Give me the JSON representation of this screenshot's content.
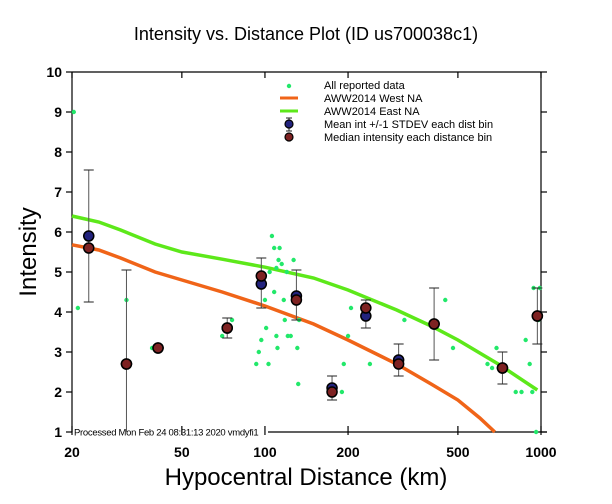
{
  "chart_data": {
    "type": "scatter",
    "title": "Intensity vs. Distance Plot (ID us700038c1)",
    "xlabel": "Hypocentral Distance (km)",
    "ylabel": "Intensity",
    "xscale": "log",
    "xlim": [
      20,
      1000
    ],
    "ylim": [
      1,
      10
    ],
    "xticks": [
      20,
      50,
      100,
      200,
      500,
      1000
    ],
    "xtick_labels": [
      "20",
      "50",
      "100",
      "200",
      "500",
      "1000"
    ],
    "yticks": [
      1,
      2,
      3,
      4,
      5,
      6,
      7,
      8,
      9,
      10
    ],
    "ytick_labels": [
      "1",
      "2",
      "3",
      "4",
      "5",
      "6",
      "7",
      "8",
      "9",
      "10"
    ],
    "grid": false,
    "legend_position": "top-right",
    "footer_text": "Processed Mon Feb 24 08:31:13 2020 vmdyfi1",
    "colors": {
      "reported": "#22e86a",
      "west": "#f06418",
      "east": "#5de81a",
      "mean": "#23237e",
      "median": "#7e2222",
      "errorbar": "#555555"
    },
    "legend": [
      {
        "label": "All reported data",
        "kind": "dot"
      },
      {
        "label": "AWW2014 West NA",
        "kind": "line-west"
      },
      {
        "label": "AWW2014 East NA",
        "kind": "line-east"
      },
      {
        "label": "Mean int +/-1 STDEV each dist bin",
        "kind": "mean"
      },
      {
        "label": "Median intensity each distance bin",
        "kind": "median"
      }
    ],
    "series": [
      {
        "name": "All reported data",
        "points": [
          [
            20.3,
            9.0
          ],
          [
            21,
            4.1
          ],
          [
            31.5,
            4.3
          ],
          [
            39,
            3.1
          ],
          [
            70,
            3.4
          ],
          [
            76,
            3.8
          ],
          [
            93,
            2.7
          ],
          [
            95,
            3.0
          ],
          [
            97,
            3.3
          ],
          [
            100,
            4.3
          ],
          [
            101,
            3.6
          ],
          [
            103,
            2.7
          ],
          [
            104,
            5.0
          ],
          [
            106,
            5.9
          ],
          [
            108,
            5.6
          ],
          [
            108,
            4.5
          ],
          [
            110,
            5.1
          ],
          [
            110,
            3.4
          ],
          [
            111,
            3.1
          ],
          [
            112,
            5.3
          ],
          [
            113,
            5.6
          ],
          [
            115,
            5.2
          ],
          [
            117,
            4.3
          ],
          [
            118,
            3.8
          ],
          [
            120,
            5.0
          ],
          [
            121,
            3.4
          ],
          [
            124,
            3.4
          ],
          [
            127,
            5.3
          ],
          [
            131,
            3.1
          ],
          [
            132,
            2.2
          ],
          [
            133,
            3.8
          ],
          [
            190,
            2.0
          ],
          [
            193,
            2.7
          ],
          [
            200,
            3.4
          ],
          [
            205,
            4.1
          ],
          [
            240,
            2.7
          ],
          [
            320,
            3.8
          ],
          [
            450,
            4.3
          ],
          [
            480,
            3.1
          ],
          [
            640,
            2.7
          ],
          [
            665,
            2.6
          ],
          [
            690,
            3.1
          ],
          [
            810,
            2.0
          ],
          [
            850,
            2.0
          ],
          [
            880,
            3.3
          ],
          [
            910,
            2.7
          ],
          [
            930,
            2.0
          ],
          [
            940,
            4.6
          ],
          [
            960,
            1.0
          ],
          [
            990,
            4.6
          ],
          [
            980,
            3.8
          ]
        ]
      },
      {
        "name": "AWW2014 West NA",
        "points": [
          [
            20,
            5.68
          ],
          [
            25,
            5.55
          ],
          [
            30,
            5.35
          ],
          [
            40,
            5.0
          ],
          [
            50,
            4.8
          ],
          [
            70,
            4.5
          ],
          [
            100,
            4.15
          ],
          [
            150,
            3.7
          ],
          [
            200,
            3.3
          ],
          [
            300,
            2.7
          ],
          [
            400,
            2.2
          ],
          [
            500,
            1.8
          ],
          [
            600,
            1.35
          ],
          [
            680,
            1.0
          ]
        ]
      },
      {
        "name": "AWW2014 East NA",
        "points": [
          [
            20,
            6.4
          ],
          [
            25,
            6.25
          ],
          [
            30,
            6.05
          ],
          [
            40,
            5.7
          ],
          [
            50,
            5.5
          ],
          [
            70,
            5.32
          ],
          [
            100,
            5.12
          ],
          [
            150,
            4.85
          ],
          [
            200,
            4.55
          ],
          [
            300,
            4.05
          ],
          [
            400,
            3.65
          ],
          [
            500,
            3.3
          ],
          [
            700,
            2.7
          ],
          [
            970,
            2.05
          ]
        ]
      },
      {
        "name": "Mean int +/-1 STDEV each dist bin",
        "points": [
          {
            "x": 23,
            "y": 5.9,
            "lo": 4.25,
            "hi": 7.55
          },
          {
            "x": 31.5,
            "y": 2.7,
            "lo": 1.0,
            "hi": 5.05
          },
          {
            "x": 41,
            "y": 3.1,
            "lo": 3.1,
            "hi": 3.1
          },
          {
            "x": 73,
            "y": 3.6,
            "lo": 3.35,
            "hi": 3.85
          },
          {
            "x": 97,
            "y": 4.7,
            "lo": 4.1,
            "hi": 5.35
          },
          {
            "x": 130,
            "y": 4.4,
            "lo": 3.8,
            "hi": 5.05
          },
          {
            "x": 175,
            "y": 2.1,
            "lo": 1.8,
            "hi": 2.4
          },
          {
            "x": 232,
            "y": 3.9,
            "lo": 3.6,
            "hi": 4.3
          },
          {
            "x": 305,
            "y": 2.8,
            "lo": 2.4,
            "hi": 3.2
          },
          {
            "x": 410,
            "y": 3.7,
            "lo": 2.8,
            "hi": 4.6
          },
          {
            "x": 725,
            "y": 2.6,
            "lo": 2.2,
            "hi": 3.0
          },
          {
            "x": 970,
            "y": 3.9,
            "lo": 3.2,
            "hi": 4.6
          }
        ]
      },
      {
        "name": "Median intensity each distance bin",
        "points": [
          [
            23,
            5.6
          ],
          [
            31.5,
            2.7
          ],
          [
            41,
            3.1
          ],
          [
            73,
            3.6
          ],
          [
            97,
            4.9
          ],
          [
            130,
            4.3
          ],
          [
            175,
            2.0
          ],
          [
            232,
            4.1
          ],
          [
            305,
            2.7
          ],
          [
            410,
            3.7
          ],
          [
            725,
            2.6
          ],
          [
            970,
            3.9
          ]
        ]
      }
    ]
  }
}
